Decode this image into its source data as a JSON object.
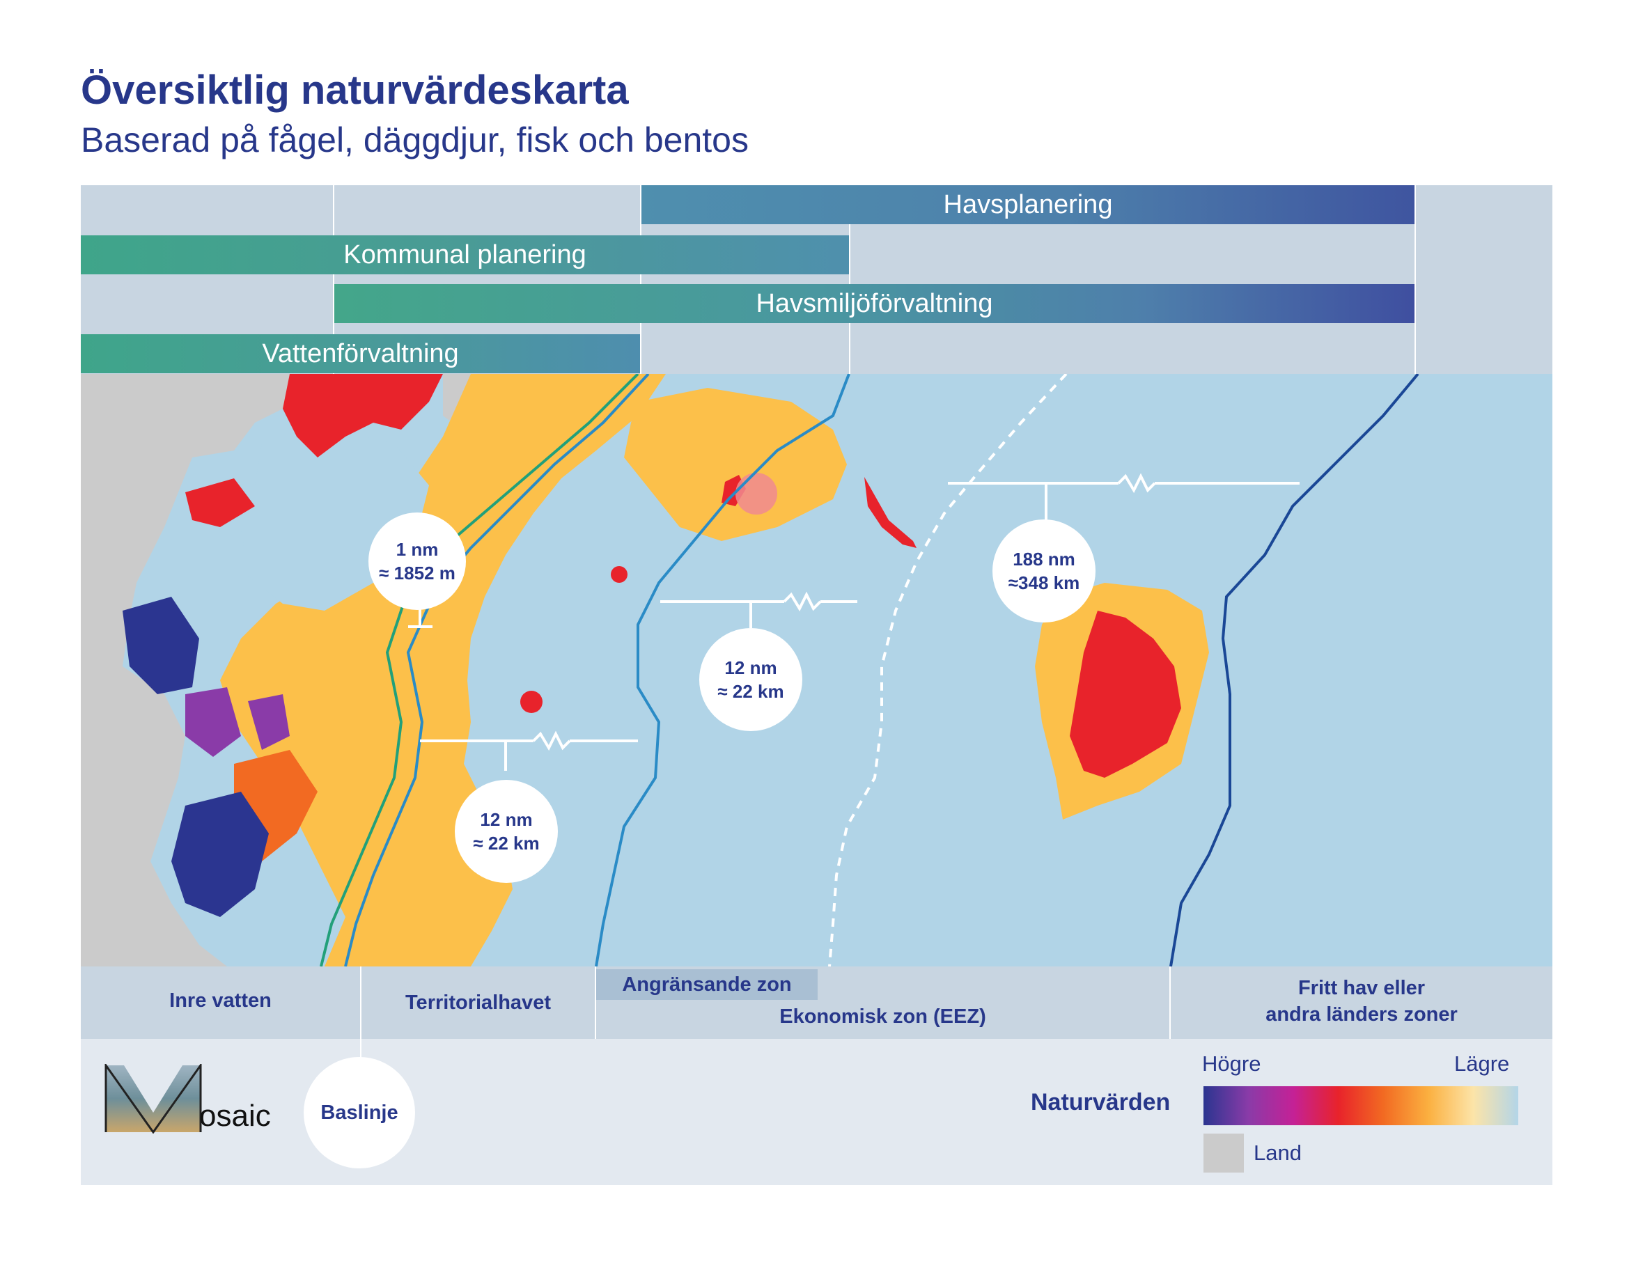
{
  "title": "Översiktlig naturvärdeskarta",
  "subtitle": "Baserad på fågel, däggdjur, fisk och bentos",
  "planning_bars": {
    "havsplanering": "Havsplanering",
    "kommunal": "Kommunal planering",
    "havsmiljo": "Havsmiljöförvaltning",
    "vatten": "Vattenförvaltning"
  },
  "distances": {
    "one_nm": {
      "line1": "1 nm",
      "line2": "≈ 1852 m"
    },
    "twelve_a": {
      "line1": "12 nm",
      "line2": "≈ 22 km"
    },
    "twelve_b": {
      "line1": "12 nm",
      "line2": "≈ 22 km"
    },
    "one88": {
      "line1": "188 nm",
      "line2": "≈348 km"
    }
  },
  "zones": {
    "inre": "Inre vatten",
    "territorial": "Territorialhavet",
    "angransande": "Angränsande zon",
    "eez": "Ekonomisk zon (EEZ)",
    "fritt_line1": "Fritt hav eller",
    "fritt_line2": "andra länders zoner"
  },
  "baseline": "Baslinje",
  "logo": "osaic",
  "legend": {
    "title": "Naturvärden",
    "high": "Högre",
    "low": "Lägre",
    "land": "Land",
    "gradient_colors": [
      "#2b3590",
      "#8a3ba8",
      "#c42196",
      "#e8232b",
      "#f26a22",
      "#fbb040",
      "#fce4a8",
      "#b3d5e8"
    ],
    "land_color": "#cbcbcb"
  },
  "colors": {
    "sea": "#b1d4e7",
    "land": "#cbcbcb",
    "high_value_red": "#e8232b",
    "medium_value_yellow": "#fcc04a",
    "title_navy": "#27378a"
  }
}
